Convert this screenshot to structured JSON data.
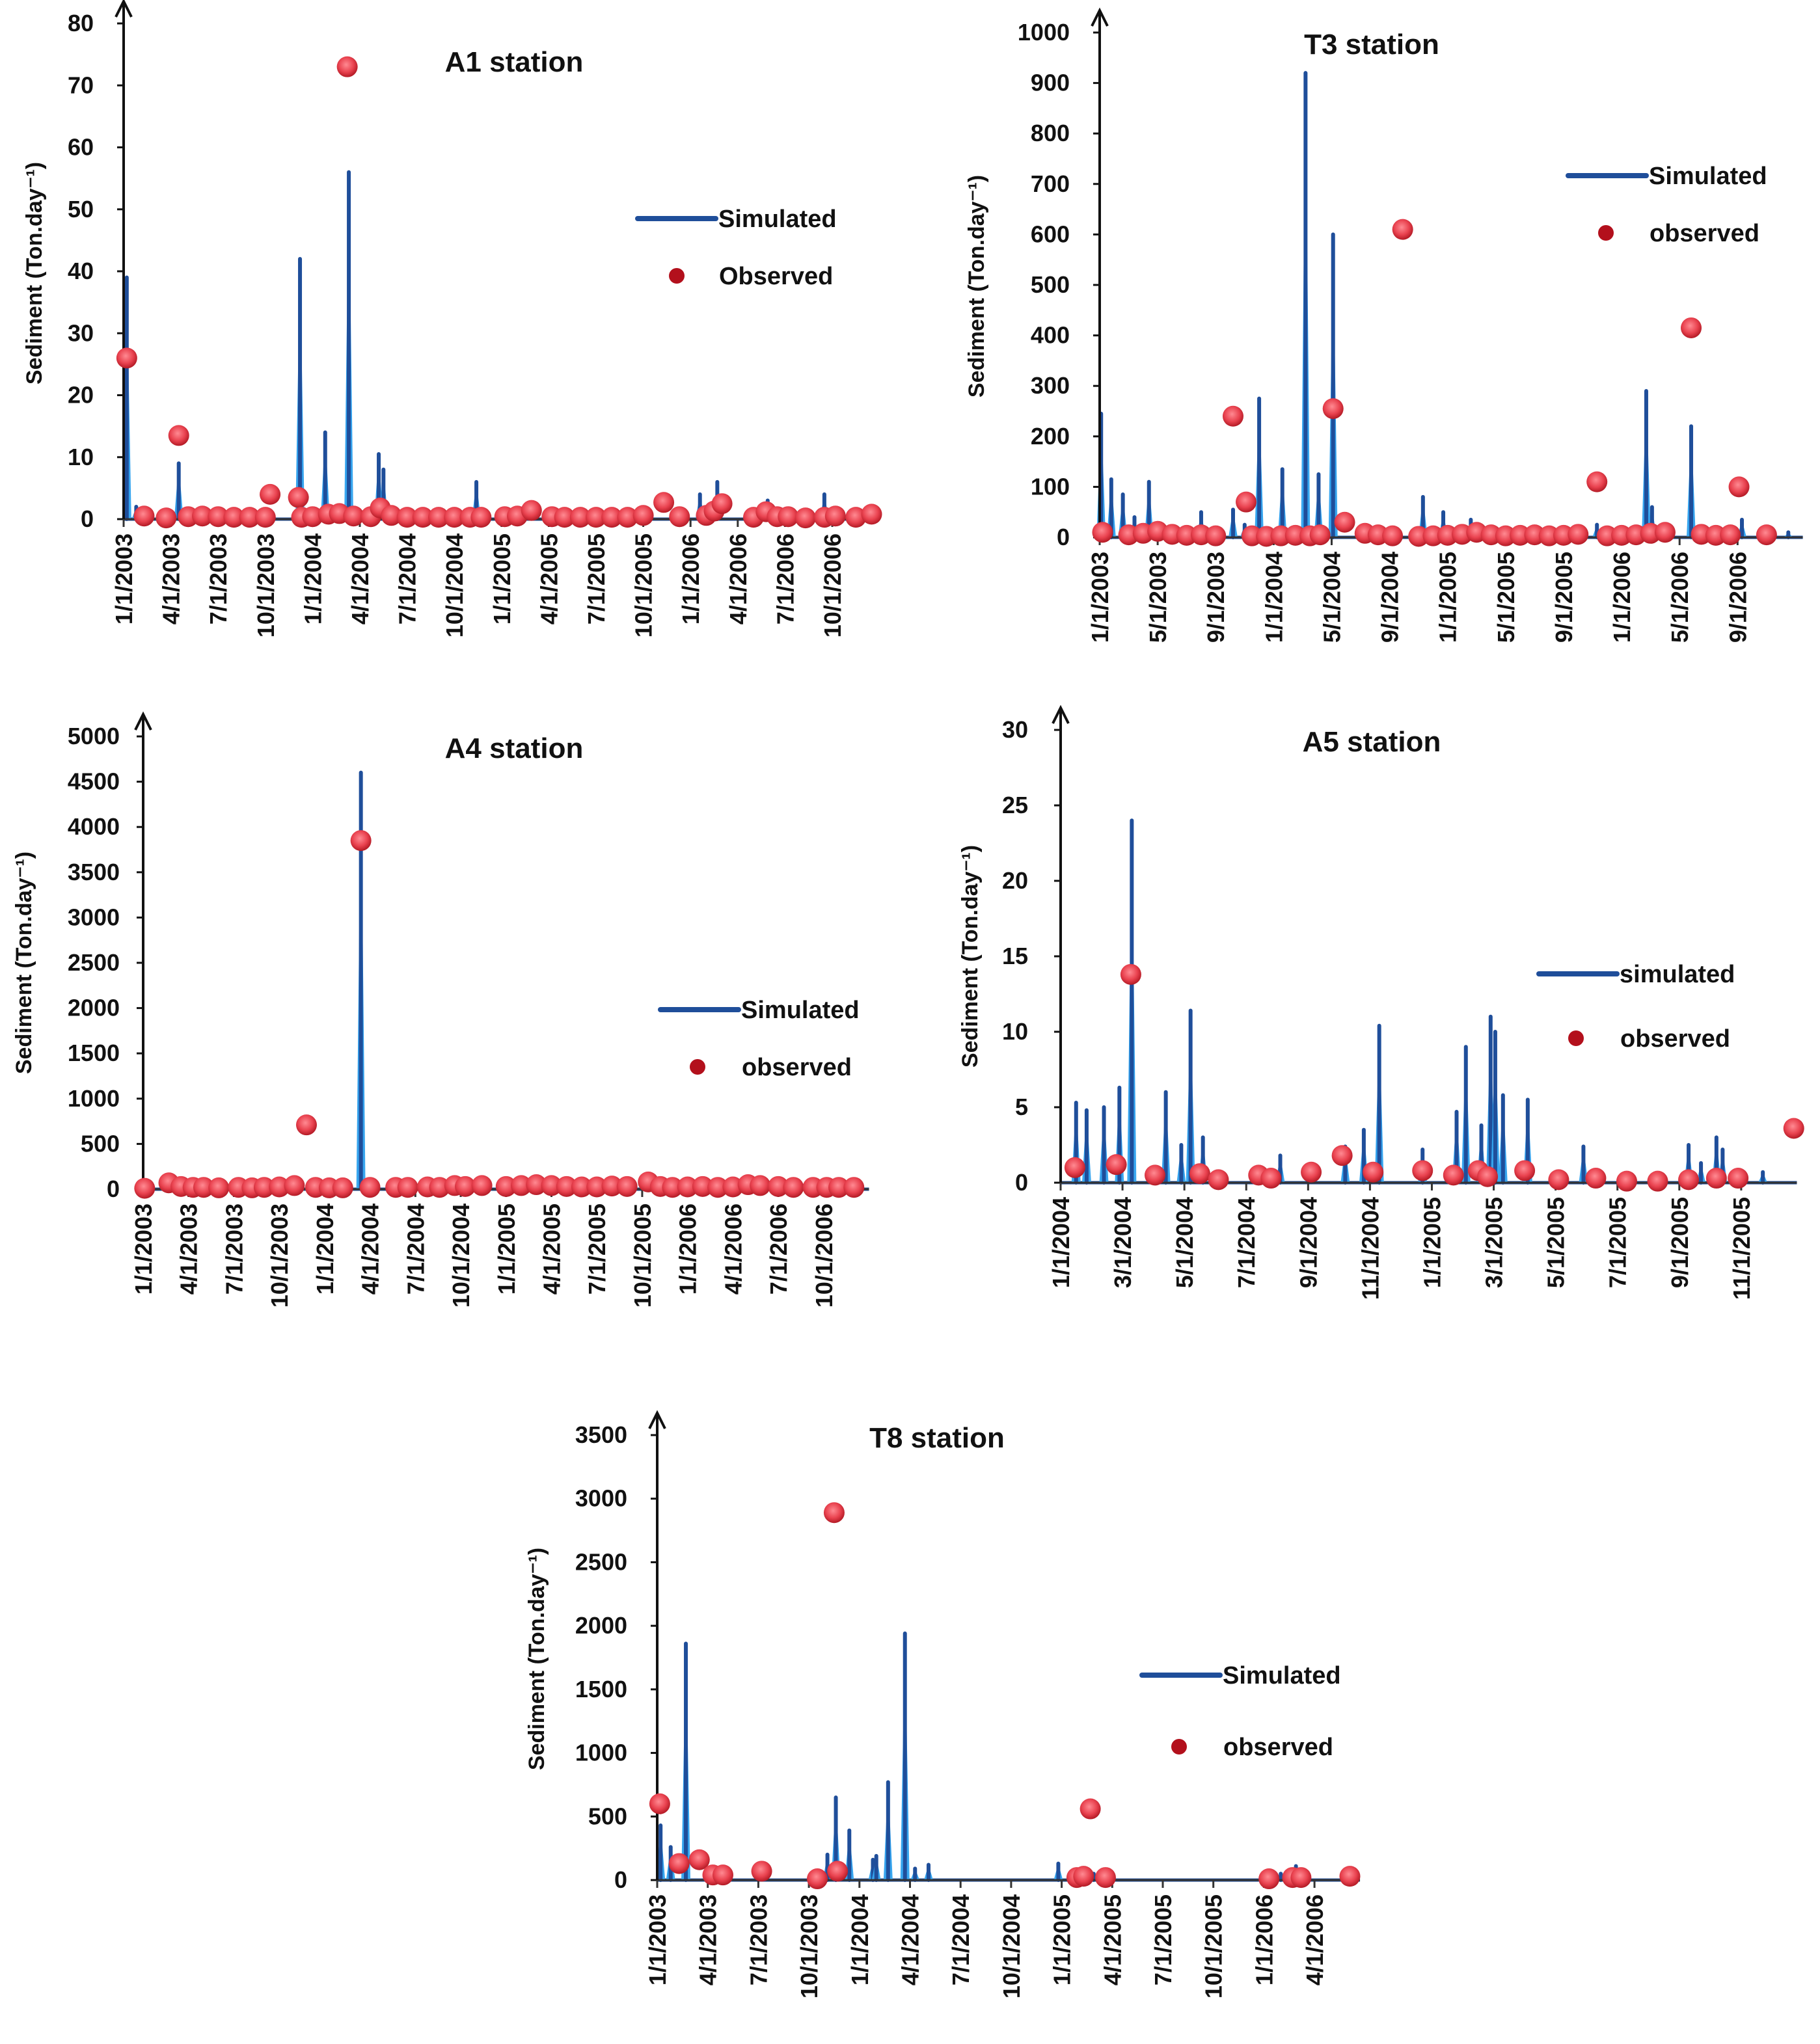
{
  "chart_data": [
    {
      "id": "A1",
      "type": "line+scatter",
      "title": "A1 station",
      "ylabel": "Sediment (Ton.day⁻¹)",
      "ylim": [
        0,
        80
      ],
      "yticks": [
        0,
        10,
        20,
        30,
        40,
        50,
        60,
        70,
        80
      ],
      "x_unit": "months since 1/1/2003",
      "xlim": [
        0,
        48
      ],
      "xtick_labels": [
        "1/1/2003",
        "4/1/2003",
        "7/1/2003",
        "10/1/2003",
        "1/1/2004",
        "4/1/2004",
        "7/1/2004",
        "10/1/2004",
        "1/1/2005",
        "4/1/2005",
        "7/1/2005",
        "10/1/2005",
        "1/1/2006",
        "4/1/2006",
        "7/1/2006",
        "10/1/2006"
      ],
      "xtick_step_months": 3,
      "legend": {
        "simulated": "Simulated",
        "observed": "Observed",
        "position": "right"
      },
      "simulated": [
        [
          0.2,
          39
        ],
        [
          0.8,
          2
        ],
        [
          3.5,
          9
        ],
        [
          11.2,
          42
        ],
        [
          12.8,
          14
        ],
        [
          14.3,
          56
        ],
        [
          16.2,
          10.5
        ],
        [
          16.5,
          8
        ],
        [
          22.4,
          6
        ],
        [
          36.6,
          4
        ],
        [
          37.7,
          6
        ],
        [
          40.9,
          3
        ],
        [
          44.5,
          4
        ]
      ],
      "observed": [
        [
          0.2,
          26
        ],
        [
          1.3,
          0.5
        ],
        [
          2.7,
          0.2
        ],
        [
          3.5,
          13.5
        ],
        [
          4.1,
          0.4
        ],
        [
          5,
          0.5
        ],
        [
          6,
          0.4
        ],
        [
          7,
          0.3
        ],
        [
          8,
          0.3
        ],
        [
          9.3,
          4
        ],
        [
          9,
          0.3
        ],
        [
          11.1,
          3.5
        ],
        [
          11.3,
          0.3
        ],
        [
          12,
          0.4
        ],
        [
          13,
          0.8
        ],
        [
          13.7,
          0.9
        ],
        [
          14.2,
          73
        ],
        [
          14.6,
          0.5
        ],
        [
          15.7,
          0.4
        ],
        [
          16.3,
          1.8
        ],
        [
          17,
          0.6
        ],
        [
          18,
          0.3
        ],
        [
          19,
          0.3
        ],
        [
          20,
          0.3
        ],
        [
          21,
          0.3
        ],
        [
          22,
          0.3
        ],
        [
          22.7,
          0.3
        ],
        [
          24.2,
          0.4
        ],
        [
          25,
          0.5
        ],
        [
          25.9,
          1.4
        ],
        [
          27.2,
          0.4
        ],
        [
          28,
          0.3
        ],
        [
          29,
          0.3
        ],
        [
          30,
          0.3
        ],
        [
          31,
          0.3
        ],
        [
          32,
          0.3
        ],
        [
          33,
          0.6
        ],
        [
          34.3,
          2.7
        ],
        [
          35.3,
          0.4
        ],
        [
          37,
          0.6
        ],
        [
          37.5,
          1.3
        ],
        [
          38,
          2.5
        ],
        [
          40,
          0.3
        ],
        [
          40.8,
          1.2
        ],
        [
          41.5,
          0.4
        ],
        [
          42.2,
          0.4
        ],
        [
          43.3,
          0.2
        ],
        [
          44.5,
          0.3
        ],
        [
          45.2,
          0.5
        ],
        [
          46.5,
          0.3
        ],
        [
          47.5,
          0.8
        ]
      ]
    },
    {
      "id": "T3",
      "type": "line+scatter",
      "title": "T3 station",
      "ylabel": "Sediment (Ton.day⁻¹)",
      "ylim": [
        0,
        1000
      ],
      "yticks": [
        0,
        100,
        200,
        300,
        400,
        500,
        600,
        700,
        800,
        900,
        1000
      ],
      "x_unit": "months since 1/1/2003",
      "xlim": [
        0,
        48.5
      ],
      "xtick_labels": [
        "1/1/2003",
        "5/1/2003",
        "9/1/2003",
        "1/1/2004",
        "5/1/2004",
        "9/1/2004",
        "1/1/2005",
        "5/1/2005",
        "9/1/2005",
        "1/1/2006",
        "5/1/2006",
        "9/1/2006"
      ],
      "xtick_step_months": 4,
      "legend": {
        "simulated": "Simulated",
        "observed": "observed",
        "position": "right"
      },
      "simulated": [
        [
          0.1,
          245
        ],
        [
          0.8,
          115
        ],
        [
          1.6,
          85
        ],
        [
          2.4,
          40
        ],
        [
          3.4,
          110
        ],
        [
          7,
          50
        ],
        [
          9.2,
          55
        ],
        [
          10,
          25
        ],
        [
          11,
          275
        ],
        [
          12.6,
          135
        ],
        [
          14.2,
          920
        ],
        [
          15.1,
          125
        ],
        [
          16.1,
          600
        ],
        [
          22.3,
          80
        ],
        [
          23.7,
          50
        ],
        [
          25.6,
          35
        ],
        [
          34.3,
          25
        ],
        [
          37.7,
          290
        ],
        [
          38.1,
          60
        ],
        [
          40.8,
          220
        ],
        [
          44.3,
          35
        ],
        [
          47.5,
          10
        ]
      ],
      "observed": [
        [
          0.2,
          10
        ],
        [
          2,
          5
        ],
        [
          3,
          8
        ],
        [
          4,
          12
        ],
        [
          5,
          6
        ],
        [
          6,
          4
        ],
        [
          7,
          5
        ],
        [
          8,
          3
        ],
        [
          9.2,
          240
        ],
        [
          10.1,
          70
        ],
        [
          10.5,
          3
        ],
        [
          11.5,
          2
        ],
        [
          12.5,
          3
        ],
        [
          13.5,
          4
        ],
        [
          14.5,
          3
        ],
        [
          15.2,
          5
        ],
        [
          16.1,
          255
        ],
        [
          16.9,
          30
        ],
        [
          18.3,
          8
        ],
        [
          19.2,
          5
        ],
        [
          20.2,
          3
        ],
        [
          20.9,
          610
        ],
        [
          22,
          2
        ],
        [
          23,
          3
        ],
        [
          24,
          4
        ],
        [
          25,
          6
        ],
        [
          26,
          10
        ],
        [
          27,
          5
        ],
        [
          28,
          3
        ],
        [
          29,
          4
        ],
        [
          30,
          5
        ],
        [
          31,
          3
        ],
        [
          32,
          4
        ],
        [
          33,
          6
        ],
        [
          34.3,
          110
        ],
        [
          35,
          3
        ],
        [
          36,
          4
        ],
        [
          37,
          5
        ],
        [
          38,
          8
        ],
        [
          39,
          10
        ],
        [
          40.8,
          415
        ],
        [
          41.5,
          6
        ],
        [
          42.5,
          4
        ],
        [
          43.5,
          5
        ],
        [
          44.1,
          100
        ],
        [
          46,
          5
        ]
      ]
    },
    {
      "id": "A4",
      "type": "line+scatter",
      "title": "A4 station",
      "ylabel": "Sediment (Ton.day⁻¹)",
      "ylim": [
        0,
        5000
      ],
      "yticks": [
        0,
        500,
        1000,
        1500,
        2000,
        2500,
        3000,
        3500,
        4000,
        4500,
        5000
      ],
      "x_unit": "months since 1/1/2003",
      "xlim": [
        0,
        48
      ],
      "xtick_labels": [
        "1/1/2003",
        "4/1/2003",
        "7/1/2003",
        "10/1/2003",
        "1/1/2004",
        "4/1/2004",
        "7/1/2004",
        "10/1/2004",
        "1/1/2005",
        "4/1/2005",
        "7/1/2005",
        "10/1/2005",
        "1/1/2006",
        "4/1/2006",
        "7/1/2006",
        "10/1/2006"
      ],
      "xtick_step_months": 3,
      "legend": {
        "simulated": "Simulated",
        "observed": "observed",
        "position": "right"
      },
      "simulated": [
        [
          14.4,
          4600
        ]
      ],
      "observed": [
        [
          0.1,
          10
        ],
        [
          1.7,
          70
        ],
        [
          2.5,
          30
        ],
        [
          3.3,
          20
        ],
        [
          4,
          20
        ],
        [
          5,
          15
        ],
        [
          6.3,
          20
        ],
        [
          7.2,
          15
        ],
        [
          8,
          20
        ],
        [
          9,
          25
        ],
        [
          10,
          40
        ],
        [
          10.8,
          710
        ],
        [
          11.4,
          20
        ],
        [
          12.3,
          15
        ],
        [
          13.2,
          15
        ],
        [
          14.4,
          3850
        ],
        [
          15,
          20
        ],
        [
          16.7,
          20
        ],
        [
          17.5,
          20
        ],
        [
          18.8,
          25
        ],
        [
          19.6,
          20
        ],
        [
          20.6,
          40
        ],
        [
          21.3,
          30
        ],
        [
          22.4,
          40
        ],
        [
          24,
          30
        ],
        [
          25,
          40
        ],
        [
          26,
          50
        ],
        [
          27,
          40
        ],
        [
          28,
          30
        ],
        [
          29,
          25
        ],
        [
          30,
          25
        ],
        [
          31,
          35
        ],
        [
          32,
          30
        ],
        [
          33.4,
          80
        ],
        [
          34.2,
          30
        ],
        [
          35,
          20
        ],
        [
          36,
          25
        ],
        [
          37,
          30
        ],
        [
          38,
          20
        ],
        [
          39,
          25
        ],
        [
          40,
          50
        ],
        [
          40.8,
          40
        ],
        [
          42,
          30
        ],
        [
          43,
          20
        ],
        [
          44.3,
          20
        ],
        [
          45.2,
          20
        ],
        [
          46,
          20
        ],
        [
          47,
          20
        ]
      ]
    },
    {
      "id": "A5",
      "type": "line+scatter",
      "title": "A5 station",
      "ylabel": "Sediment (Ton.day⁻¹)",
      "ylim": [
        0,
        30
      ],
      "yticks": [
        0,
        5,
        10,
        15,
        20,
        25,
        30
      ],
      "x_unit": "months since 1/1/2004",
      "xlim": [
        0,
        23.8
      ],
      "xtick_labels": [
        "1/1/2004",
        "3/1/2004",
        "5/1/2004",
        "7/1/2004",
        "9/1/2004",
        "11/1/2004",
        "1/1/2005",
        "3/1/2005",
        "5/1/2005",
        "7/1/2005",
        "9/1/2005",
        "11/1/2005"
      ],
      "xtick_step_months": 2,
      "legend": {
        "simulated": "simulated",
        "observed": "observed",
        "position": "right"
      },
      "simulated": [
        [
          0.5,
          5.3
        ],
        [
          0.84,
          4.8
        ],
        [
          1.4,
          5
        ],
        [
          1.9,
          6.3
        ],
        [
          2.3,
          24
        ],
        [
          3.4,
          6
        ],
        [
          3.9,
          2.5
        ],
        [
          4.2,
          11.4
        ],
        [
          4.6,
          3
        ],
        [
          7.1,
          1.8
        ],
        [
          9.2,
          2.4
        ],
        [
          9.8,
          3.5
        ],
        [
          10.3,
          10.4
        ],
        [
          11.7,
          2.2
        ],
        [
          12.8,
          4.7
        ],
        [
          13.1,
          9
        ],
        [
          13.6,
          3.8
        ],
        [
          13.9,
          11
        ],
        [
          14.05,
          10
        ],
        [
          14.3,
          5.8
        ],
        [
          15.1,
          5.5
        ],
        [
          16.9,
          2.4
        ],
        [
          20.3,
          2.5
        ],
        [
          20.7,
          1.3
        ],
        [
          21.2,
          3
        ],
        [
          21.4,
          2.2
        ],
        [
          22.7,
          0.7
        ]
      ],
      "observed": [
        [
          0.46,
          1
        ],
        [
          1.8,
          1.2
        ],
        [
          2.27,
          13.8
        ],
        [
          3.05,
          0.5
        ],
        [
          4.5,
          0.6
        ],
        [
          5.1,
          0.2
        ],
        [
          6.4,
          0.5
        ],
        [
          6.8,
          0.3
        ],
        [
          8.1,
          0.7
        ],
        [
          9.1,
          1.8
        ],
        [
          10.1,
          0.7
        ],
        [
          11.7,
          0.8
        ],
        [
          12.7,
          0.5
        ],
        [
          13.5,
          0.8
        ],
        [
          13.8,
          0.4
        ],
        [
          15,
          0.8
        ],
        [
          16.1,
          0.2
        ],
        [
          17.3,
          0.3
        ],
        [
          18.3,
          0.1
        ],
        [
          19.3,
          0.1
        ],
        [
          20.3,
          0.2
        ],
        [
          21.2,
          0.3
        ],
        [
          21.9,
          0.3
        ],
        [
          23.7,
          3.6
        ]
      ]
    },
    {
      "id": "T8",
      "type": "line+scatter",
      "title": "T8 station",
      "ylabel": "Sediment (Ton.day⁻¹)",
      "ylim": [
        0,
        3500
      ],
      "yticks": [
        0,
        500,
        1000,
        1500,
        2000,
        2500,
        3000,
        3500
      ],
      "x_unit": "months since 1/1/2003",
      "xlim": [
        0,
        41.7
      ],
      "xtick_labels": [
        "1/1/2003",
        "4/1/2003",
        "7/1/2003",
        "10/1/2003",
        "1/1/2004",
        "4/1/2004",
        "7/1/2004",
        "10/1/2004",
        "1/1/2005",
        "4/1/2005",
        "7/1/2005",
        "10/1/2005",
        "1/1/2006",
        "4/1/2006"
      ],
      "xtick_step_months": 3,
      "legend": {
        "simulated": "Simulated",
        "observed": "observed",
        "position": "right"
      },
      "simulated": [
        [
          0.2,
          430
        ],
        [
          0.8,
          260
        ],
        [
          1.7,
          1860
        ],
        [
          10.1,
          200
        ],
        [
          10.6,
          650
        ],
        [
          11.4,
          390
        ],
        [
          12.8,
          160
        ],
        [
          13,
          190
        ],
        [
          13.7,
          770
        ],
        [
          14.7,
          1940
        ],
        [
          15.3,
          90
        ],
        [
          16.1,
          120
        ],
        [
          23.8,
          130
        ],
        [
          25.9,
          50
        ],
        [
          37,
          50
        ],
        [
          37.9,
          110
        ]
      ],
      "observed": [
        [
          0.15,
          600
        ],
        [
          1.3,
          130
        ],
        [
          2.5,
          160
        ],
        [
          3.3,
          40
        ],
        [
          3.9,
          40
        ],
        [
          6.2,
          70
        ],
        [
          9.5,
          10
        ],
        [
          10.5,
          2890
        ],
        [
          10.7,
          70
        ],
        [
          24.9,
          20
        ],
        [
          25.3,
          30
        ],
        [
          25.7,
          560
        ],
        [
          26.6,
          20
        ],
        [
          36.3,
          10
        ],
        [
          37.7,
          20
        ],
        [
          38.2,
          20
        ],
        [
          41.1,
          30
        ]
      ]
    }
  ]
}
